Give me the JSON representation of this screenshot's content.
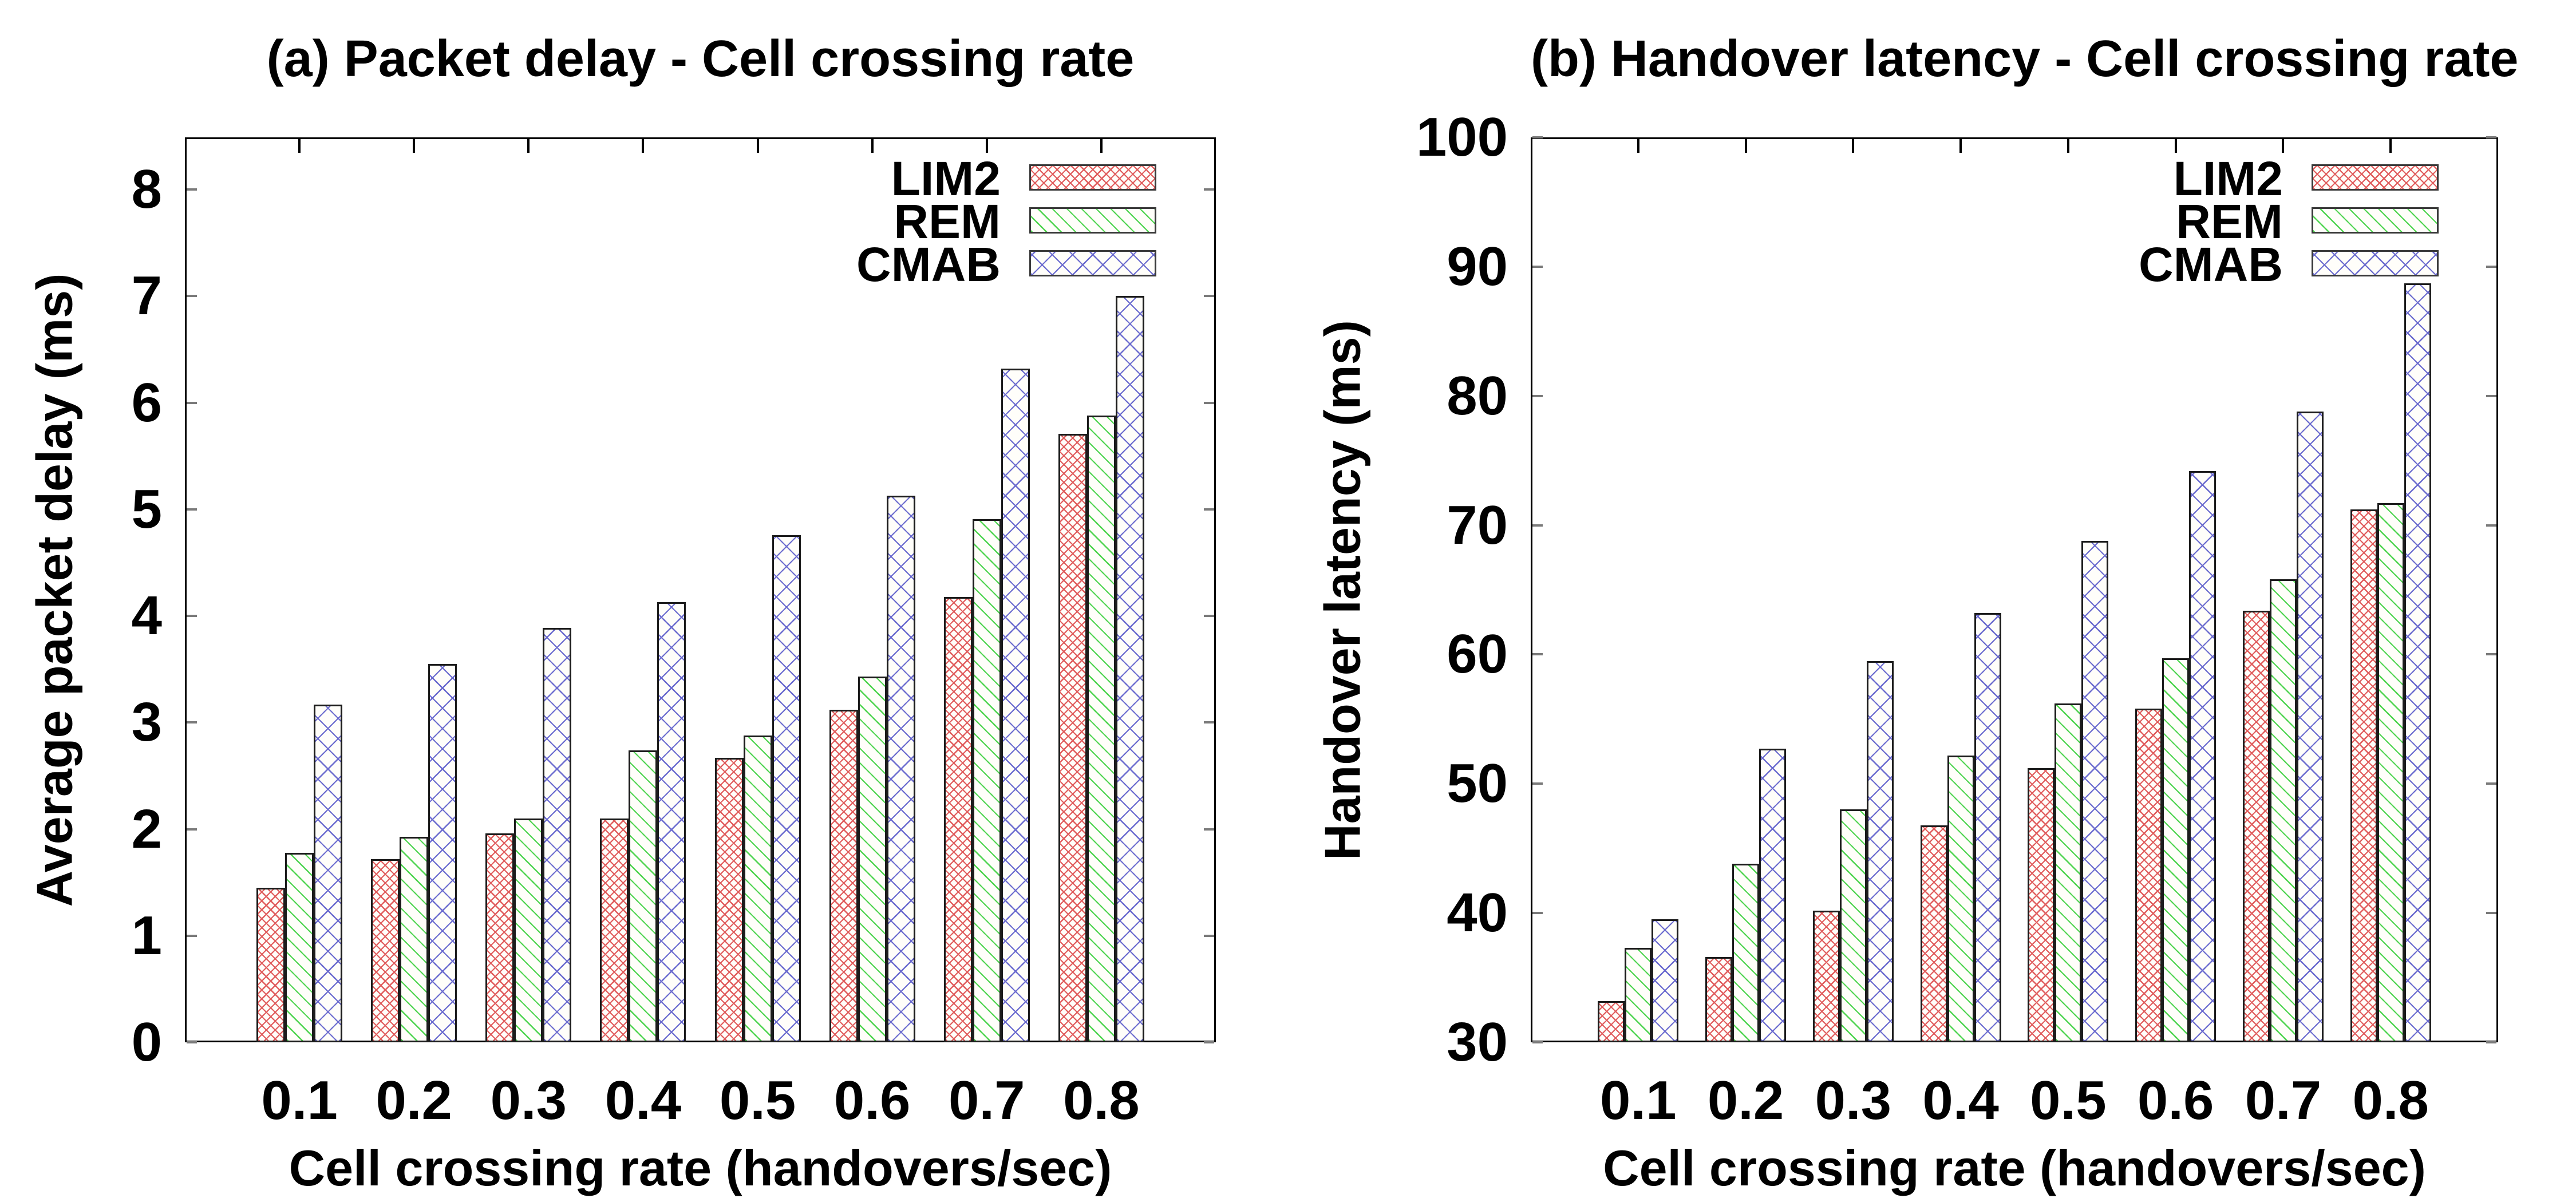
{
  "page": {
    "background": "#ffffff",
    "frame_color": "#000000",
    "tick_color": "#7a7a7a",
    "bar_border_color": "#1c1c1c"
  },
  "chart_data": [
    {
      "type": "bar",
      "panel": "a",
      "title": "(a) Packet delay - Cell crossing rate",
      "xlabel": "Cell crossing rate (handovers/sec)",
      "ylabel": "Average packet delay (ms)",
      "categories": [
        "0.1",
        "0.2",
        "0.3",
        "0.4",
        "0.5",
        "0.6",
        "0.7",
        "0.8"
      ],
      "y_ticks": [
        "0",
        "1",
        "2",
        "3",
        "4",
        "5",
        "6",
        "7",
        "8"
      ],
      "ylim": [
        0,
        8.49
      ],
      "grid": false,
      "legend_position": "top-right-inside",
      "legend": [
        "LIM2",
        "REM",
        "CMAB"
      ],
      "series": [
        {
          "name": "LIM2",
          "pattern": "crosshatch-fine",
          "color": "#e05c5c",
          "values": [
            1.45,
            1.72,
            1.96,
            2.1,
            2.67,
            3.12,
            4.18,
            5.71
          ]
        },
        {
          "name": "REM",
          "pattern": "diagonal",
          "color": "#4ed44e",
          "values": [
            1.78,
            1.93,
            2.1,
            2.74,
            2.88,
            3.43,
            4.91,
            5.88
          ]
        },
        {
          "name": "CMAB",
          "pattern": "crosshatch-wide",
          "color": "#6a6ace",
          "values": [
            3.17,
            3.55,
            3.89,
            4.13,
            4.76,
            5.13,
            6.32,
            7.0
          ]
        }
      ]
    },
    {
      "type": "bar",
      "panel": "b",
      "title": "(b) Handover latency - Cell crossing rate",
      "xlabel": "Cell crossing rate (handovers/sec)",
      "ylabel": "Handover latency (ms)",
      "categories": [
        "0.1",
        "0.2",
        "0.3",
        "0.4",
        "0.5",
        "0.6",
        "0.7",
        "0.8"
      ],
      "y_ticks": [
        "30",
        "40",
        "50",
        "60",
        "70",
        "80",
        "90",
        "100"
      ],
      "ylim": [
        30,
        100
      ],
      "grid": false,
      "legend_position": "top-right-inside",
      "legend": [
        "LIM2",
        "REM",
        "CMAB"
      ],
      "series": [
        {
          "name": "LIM2",
          "pattern": "crosshatch-fine",
          "color": "#e05c5c",
          "values": [
            33.2,
            36.6,
            40.2,
            46.8,
            51.2,
            55.8,
            63.4,
            71.2
          ]
        },
        {
          "name": "REM",
          "pattern": "diagonal",
          "color": "#4ed44e",
          "values": [
            37.3,
            43.8,
            48.0,
            52.2,
            56.2,
            59.7,
            65.8,
            71.7
          ]
        },
        {
          "name": "CMAB",
          "pattern": "crosshatch-wide",
          "color": "#6a6ace",
          "values": [
            39.5,
            52.7,
            59.5,
            63.2,
            68.8,
            74.2,
            78.8,
            88.7
          ]
        }
      ]
    }
  ]
}
